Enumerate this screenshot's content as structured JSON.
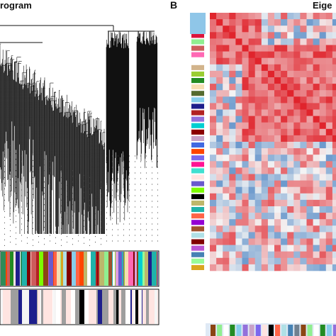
{
  "panel_a": {
    "title": "rogram"
  },
  "panel_b": {
    "letter": "B",
    "title": "Eige"
  },
  "colors": {
    "dendrogram": "#111111",
    "heatmap_pos": "#e0242c",
    "heatmap_neg": "#3f7cc0",
    "heatmap_mid": "#f4f4f4"
  },
  "module_colors": [
    "#8fc6e8",
    "#8b4513",
    "#2e8b57",
    "#dc143c",
    "#90ee90",
    "#cd5c5c",
    "#ff69b4",
    "#ffffff",
    "#d2b48c",
    "#9acd32",
    "#228b22",
    "#f5deb3",
    "#556b2f",
    "#87ceeb",
    "#1e1e8c",
    "#b22222",
    "#9370db",
    "#00ced1",
    "#8b0000",
    "#c8a2c8",
    "#4169e1",
    "#ff4500",
    "#7b68ee",
    "#ff1493",
    "#40e0d0",
    "#ffe4e1",
    "#6a5acd",
    "#7cfc00",
    "#000000",
    "#bdb76b",
    "#20b2aa",
    "#ff6347",
    "#9400d3",
    "#a0522d",
    "#b0e0e6",
    "#800000",
    "#ba55d3",
    "#4682b4",
    "#98fb98",
    "#daa520",
    "#708090",
    "#dda0dd"
  ],
  "heatmap": {
    "n": 40
  }
}
